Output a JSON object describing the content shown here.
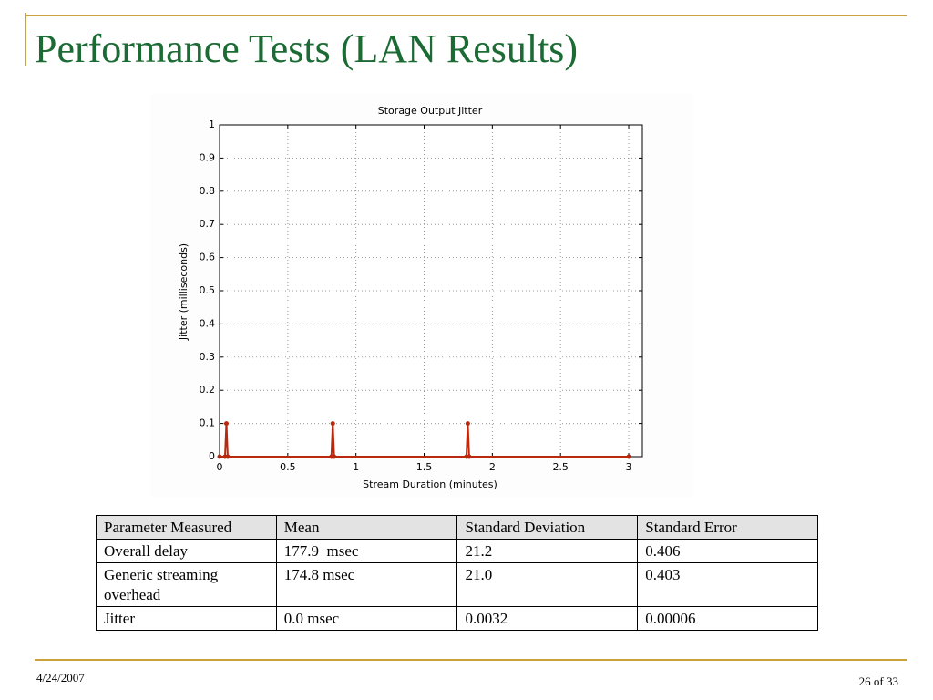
{
  "title": "Performance Tests (LAN Results)",
  "chart_data": {
    "type": "line",
    "title": "Storage Output Jitter",
    "x_label": "Stream Duration (minutes)",
    "y_label": "Jitter (milliseconds)",
    "x": [
      0,
      0.04,
      0.05,
      0.06,
      0.82,
      0.83,
      0.84,
      1.81,
      1.82,
      1.83,
      3.0
    ],
    "series": [
      {
        "color": "#b8290f",
        "values": [
          0,
          0,
          0.1,
          0,
          0,
          0.1,
          0,
          0,
          0.1,
          0,
          0
        ]
      }
    ],
    "xlim": [
      0,
      3.1
    ],
    "ylim": [
      0,
      1
    ],
    "xticks": [
      0,
      0.5,
      1,
      1.5,
      2,
      2.5,
      3
    ],
    "yticks": [
      0,
      0.1,
      0.2,
      0.3,
      0.4,
      0.5,
      0.6,
      0.7,
      0.8,
      0.9,
      1
    ],
    "grid": true
  },
  "table": {
    "header": [
      "Parameter Measured",
      "Mean",
      "Standard Deviation",
      "Standard Error"
    ],
    "rows": [
      [
        "Overall delay",
        "177.9  msec",
        "21.2",
        "0.406"
      ],
      [
        "Generic streaming overhead",
        "174.8 msec",
        "21.0",
        "0.403"
      ],
      [
        "Jitter",
        "0.0 msec",
        "0.0032",
        "0.00006"
      ]
    ]
  },
  "footer": {
    "date": "4/24/2007",
    "page": "26 of 33"
  }
}
